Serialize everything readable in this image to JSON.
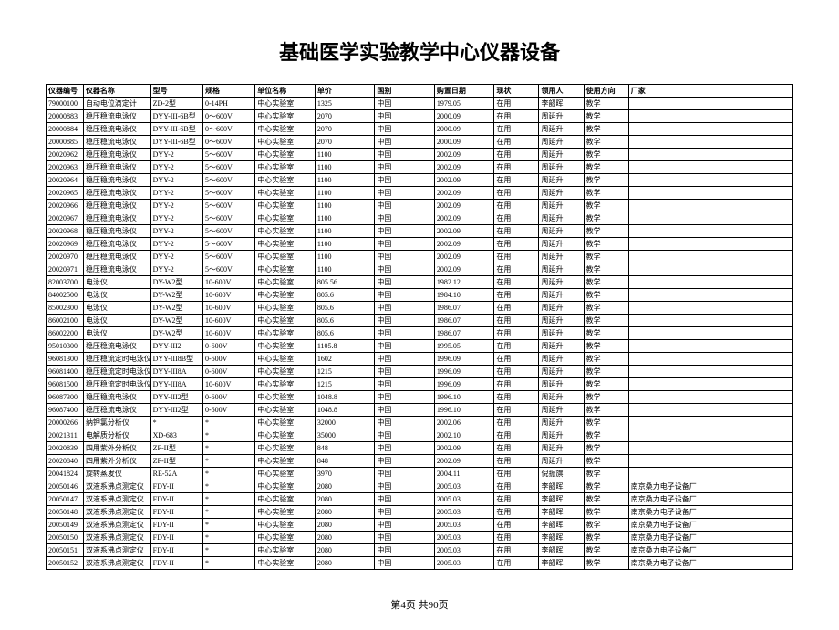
{
  "title": "基础医学实验教学中心仪器设备",
  "footer": "第4页 共90页",
  "columns": [
    "仪器编号",
    "仪器名称",
    "型号",
    "规格",
    "单位名称",
    "单价",
    "国别",
    "购置日期",
    "现状",
    "领用人",
    "使用方向",
    "厂家"
  ],
  "rows": [
    [
      "79000100",
      "自动电位滴定计",
      "ZD-2型",
      "0-14PH",
      "中心实验室",
      "1325",
      "中国",
      "1979.05",
      "在用",
      "李韶晖",
      "教学",
      ""
    ],
    [
      "20000883",
      "稳压稳流电泳仪",
      "DYY-III-6B型",
      "0～600V",
      "中心实验室",
      "2070",
      "中国",
      "2000.09",
      "在用",
      "周延升",
      "教学",
      ""
    ],
    [
      "20000884",
      "稳压稳流电泳仪",
      "DYY-III-6B型",
      "0～600V",
      "中心实验室",
      "2070",
      "中国",
      "2000.09",
      "在用",
      "周延升",
      "教学",
      ""
    ],
    [
      "20000885",
      "稳压稳流电泳仪",
      "DYY-III-6B型",
      "0～600V",
      "中心实验室",
      "2070",
      "中国",
      "2000.09",
      "在用",
      "周延升",
      "教学",
      ""
    ],
    [
      "20020962",
      "稳压稳流电泳仪",
      "DYY-2",
      "5～600V",
      "中心实验室",
      "1100",
      "中国",
      "2002.09",
      "在用",
      "周延升",
      "教学",
      ""
    ],
    [
      "20020963",
      "稳压稳流电泳仪",
      "DYY-2",
      "5～600V",
      "中心实验室",
      "1100",
      "中国",
      "2002.09",
      "在用",
      "周延升",
      "教学",
      ""
    ],
    [
      "20020964",
      "稳压稳流电泳仪",
      "DYY-2",
      "5～600V",
      "中心实验室",
      "1100",
      "中国",
      "2002.09",
      "在用",
      "周延升",
      "教学",
      ""
    ],
    [
      "20020965",
      "稳压稳流电泳仪",
      "DYY-2",
      "5～600V",
      "中心实验室",
      "1100",
      "中国",
      "2002.09",
      "在用",
      "周延升",
      "教学",
      ""
    ],
    [
      "20020966",
      "稳压稳流电泳仪",
      "DYY-2",
      "5～600V",
      "中心实验室",
      "1100",
      "中国",
      "2002.09",
      "在用",
      "周延升",
      "教学",
      ""
    ],
    [
      "20020967",
      "稳压稳流电泳仪",
      "DYY-2",
      "5～600V",
      "中心实验室",
      "1100",
      "中国",
      "2002.09",
      "在用",
      "周延升",
      "教学",
      ""
    ],
    [
      "20020968",
      "稳压稳流电泳仪",
      "DYY-2",
      "5～600V",
      "中心实验室",
      "1100",
      "中国",
      "2002.09",
      "在用",
      "周延升",
      "教学",
      ""
    ],
    [
      "20020969",
      "稳压稳流电泳仪",
      "DYY-2",
      "5～600V",
      "中心实验室",
      "1100",
      "中国",
      "2002.09",
      "在用",
      "周延升",
      "教学",
      ""
    ],
    [
      "20020970",
      "稳压稳流电泳仪",
      "DYY-2",
      "5～600V",
      "中心实验室",
      "1100",
      "中国",
      "2002.09",
      "在用",
      "周延升",
      "教学",
      ""
    ],
    [
      "20020971",
      "稳压稳流电泳仪",
      "DYY-2",
      "5～600V",
      "中心实验室",
      "1100",
      "中国",
      "2002.09",
      "在用",
      "周延升",
      "教学",
      ""
    ],
    [
      "82003700",
      "电泳仪",
      "DY-W2型",
      "10-600V",
      "中心实验室",
      "805.56",
      "中国",
      "1982.12",
      "在用",
      "周延升",
      "教学",
      ""
    ],
    [
      "84002500",
      "电泳仪",
      "DY-W2型",
      "10-600V",
      "中心实验室",
      "805.6",
      "中国",
      "1984.10",
      "在用",
      "周延升",
      "教学",
      ""
    ],
    [
      "85002300",
      "电泳仪",
      "DY-W2型",
      "10-600V",
      "中心实验室",
      "805.6",
      "中国",
      "1986.07",
      "在用",
      "周延升",
      "教学",
      ""
    ],
    [
      "86002100",
      "电泳仪",
      "DY-W2型",
      "10-600V",
      "中心实验室",
      "805.6",
      "中国",
      "1986.07",
      "在用",
      "周延升",
      "教学",
      ""
    ],
    [
      "86002200",
      "电泳仪",
      "DY-W2型",
      "10-600V",
      "中心实验室",
      "805.6",
      "中国",
      "1986.07",
      "在用",
      "周延升",
      "教学",
      ""
    ],
    [
      "95010300",
      "稳压稳流电泳仪",
      "DYY-III2",
      "0-600V",
      "中心实验室",
      "1105.8",
      "中国",
      "1995.05",
      "在用",
      "周延升",
      "教学",
      ""
    ],
    [
      "96081300",
      "稳压稳流定时电泳仪",
      "DYY-III8B型",
      "0-600V",
      "中心实验室",
      "1602",
      "中国",
      "1996.09",
      "在用",
      "周延升",
      "教学",
      ""
    ],
    [
      "96081400",
      "稳压稳流定时电泳仪",
      "DYY-III8A",
      "0-600V",
      "中心实验室",
      "1215",
      "中国",
      "1996.09",
      "在用",
      "周延升",
      "教学",
      ""
    ],
    [
      "96081500",
      "稳压稳流定时电泳仪",
      "DYY-III8A",
      "10-600V",
      "中心实验室",
      "1215",
      "中国",
      "1996.09",
      "在用",
      "周延升",
      "教学",
      ""
    ],
    [
      "96087300",
      "稳压稳流电泳仪",
      "DYY-III2型",
      "0-600V",
      "中心实验室",
      "1048.8",
      "中国",
      "1996.10",
      "在用",
      "周延升",
      "教学",
      ""
    ],
    [
      "96087400",
      "稳压稳流电泳仪",
      "DYY-III2型",
      "0-600V",
      "中心实验室",
      "1048.8",
      "中国",
      "1996.10",
      "在用",
      "周延升",
      "教学",
      ""
    ],
    [
      "20000266",
      "纳钾氯分析仪",
      "*",
      "*",
      "中心实验室",
      "32000",
      "中国",
      "2002.06",
      "在用",
      "周延升",
      "教学",
      ""
    ],
    [
      "20021311",
      "电解质分析仪",
      "XD-683",
      "*",
      "中心实验室",
      "35000",
      "中国",
      "2002.10",
      "在用",
      "周延升",
      "教学",
      ""
    ],
    [
      "20020839",
      "四用紫外分析仪",
      "ZF-II型",
      "*",
      "中心实验室",
      "848",
      "中国",
      "2002.09",
      "在用",
      "周延升",
      "教学",
      ""
    ],
    [
      "20020840",
      "四用紫外分析仪",
      "ZF-II型",
      "*",
      "中心实验室",
      "848",
      "中国",
      "2002.09",
      "在用",
      "周延升",
      "教学",
      ""
    ],
    [
      "20041824",
      "旋转蒸发仪",
      "RE-52A",
      "*",
      "中心实验室",
      "3970",
      "中国",
      "2004.11",
      "在用",
      "倪振旗",
      "教学",
      ""
    ],
    [
      "20050146",
      "双液系沸点测定仪",
      "FDY-II",
      "*",
      "中心实验室",
      "2080",
      "中国",
      "2005.03",
      "在用",
      "李韶晖",
      "教学",
      "南京桑力电子设备厂"
    ],
    [
      "20050147",
      "双液系沸点测定仪",
      "FDY-II",
      "*",
      "中心实验室",
      "2080",
      "中国",
      "2005.03",
      "在用",
      "李韶晖",
      "教学",
      "南京桑力电子设备厂"
    ],
    [
      "20050148",
      "双液系沸点测定仪",
      "FDY-II",
      "*",
      "中心实验室",
      "2080",
      "中国",
      "2005.03",
      "在用",
      "李韶晖",
      "教学",
      "南京桑力电子设备厂"
    ],
    [
      "20050149",
      "双液系沸点测定仪",
      "FDY-II",
      "*",
      "中心实验室",
      "2080",
      "中国",
      "2005.03",
      "在用",
      "李韶晖",
      "教学",
      "南京桑力电子设备厂"
    ],
    [
      "20050150",
      "双液系沸点测定仪",
      "FDY-II",
      "*",
      "中心实验室",
      "2080",
      "中国",
      "2005.03",
      "在用",
      "李韶晖",
      "教学",
      "南京桑力电子设备厂"
    ],
    [
      "20050151",
      "双液系沸点测定仪",
      "FDY-II",
      "*",
      "中心实验室",
      "2080",
      "中国",
      "2005.03",
      "在用",
      "李韶晖",
      "教学",
      "南京桑力电子设备厂"
    ],
    [
      "20050152",
      "双液系沸点测定仪",
      "FDY-II",
      "*",
      "中心实验室",
      "2080",
      "中国",
      "2005.03",
      "在用",
      "李韶晖",
      "教学",
      "南京桑力电子设备厂"
    ]
  ]
}
